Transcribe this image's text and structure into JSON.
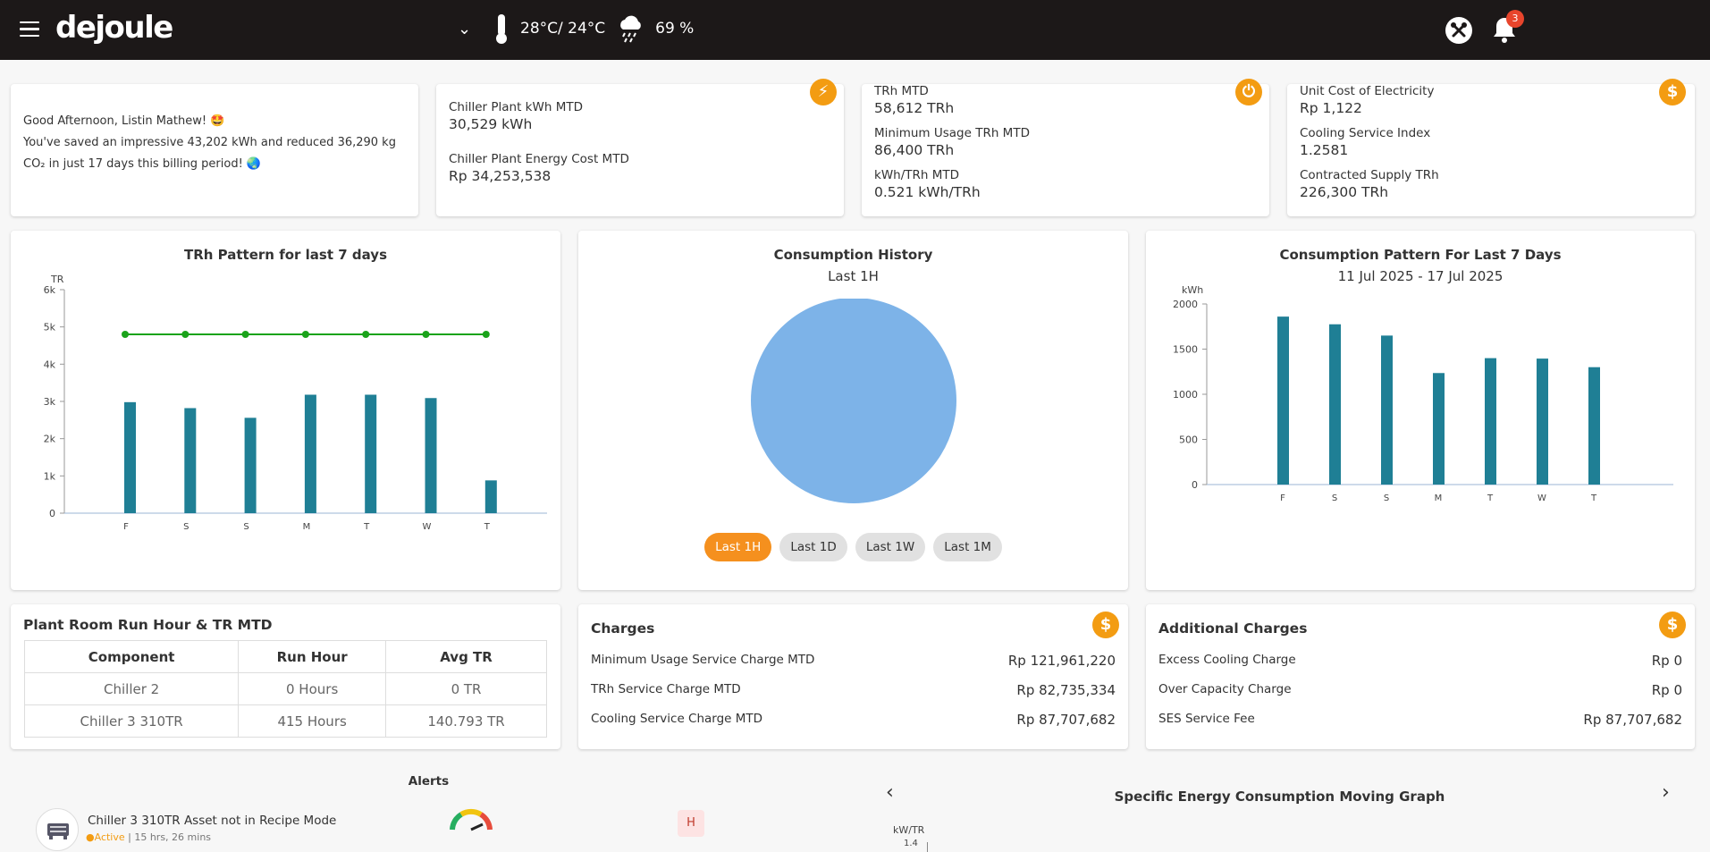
{
  "header": {
    "logo": "dejoule",
    "temperature": "28°C/ 24°C",
    "humidity": "69 %",
    "notification_count": "3"
  },
  "greeting": {
    "line1": "Good Afternoon, Listin Mathew! 🤩",
    "line2": "You've saved an impressive 43,202 kWh and reduced 36,290 kg CO₂ in just 17 days this billing period! 🌏"
  },
  "kpi1": {
    "a_label": "Chiller Plant kWh MTD",
    "a_value": "30,529 kWh",
    "b_label": "Chiller Plant Energy Cost MTD",
    "b_value": "Rp 34,253,538"
  },
  "kpi2": {
    "a_label": "TRh MTD",
    "a_value": "58,612 TRh",
    "b_label": "Minimum Usage TRh MTD",
    "b_value": "86,400 TRh",
    "c_label": "kWh/TRh MTD",
    "c_value": "0.521 kWh/TRh"
  },
  "kpi3": {
    "a_label": "Unit Cost of Electricity",
    "a_value": "Rp 1,122",
    "b_label": "Cooling Service Index",
    "b_value": "1.2581",
    "c_label": "Contracted Supply TRh",
    "c_value": "226,300 TRh"
  },
  "trh_card": {
    "title": "TRh Pattern for last 7 days"
  },
  "consumption_card": {
    "title": "Consumption History",
    "subtitle": "Last 1H",
    "filters": [
      "Last 1H",
      "Last 1D",
      "Last 1W",
      "Last 1M"
    ]
  },
  "pattern_card": {
    "title": "Consumption Pattern For Last 7 Days",
    "subtitle": "11 Jul 2025 - 17 Jul 2025"
  },
  "run_hour": {
    "title": "Plant Room Run Hour & TR MTD",
    "headers": [
      "Component",
      "Run Hour",
      "Avg TR"
    ],
    "rows": [
      [
        "Chiller 2",
        "0 Hours",
        "0 TR"
      ],
      [
        "Chiller 3 310TR",
        "415 Hours",
        "140.793 TR"
      ]
    ]
  },
  "charges": {
    "title": "Charges",
    "rows": [
      {
        "label": "Minimum Usage Service Charge MTD",
        "amount": "Rp 121,961,220"
      },
      {
        "label": "TRh Service Charge MTD",
        "amount": "Rp 82,735,334"
      },
      {
        "label": "Cooling Service Charge MTD",
        "amount": "Rp 87,707,682"
      }
    ]
  },
  "additional_charges": {
    "title": "Additional Charges",
    "rows": [
      {
        "label": "Excess Cooling Charge",
        "amount": "Rp 0"
      },
      {
        "label": "Over Capacity Charge",
        "amount": "Rp 0"
      },
      {
        "label": "SES Service Fee",
        "amount": "Rp 87,707,682"
      }
    ]
  },
  "alerts": {
    "title": "Alerts",
    "item_title": "Chiller 3 310TR Asset not in Recipe Mode",
    "item_status": "Active",
    "item_time": "| 15 hrs, 26 mins",
    "item_priority": "H"
  },
  "sec_graph": {
    "title": "Specific Energy Consumption Moving Graph",
    "ylabel": "kW/TR",
    "first_tick": "1.4"
  },
  "colors": {
    "accent": "#f39c12",
    "bar": "#1f7f95",
    "line": "#1aa31a",
    "pie": "#7db3e8"
  },
  "chart_data": [
    {
      "type": "bar",
      "title": "TRh Pattern for last 7 days",
      "ylabel": "TR",
      "categories": [
        "F",
        "S",
        "S",
        "M",
        "T",
        "W",
        "T"
      ],
      "series": [
        {
          "name": "TRh",
          "type": "bar",
          "values": [
            2980,
            2820,
            2560,
            3180,
            3180,
            3090,
            880
          ]
        },
        {
          "name": "Minimum Usage",
          "type": "line",
          "values": [
            4800,
            4800,
            4800,
            4800,
            4800,
            4800,
            4800
          ]
        }
      ],
      "ylim": [
        0,
        6000
      ],
      "yticks": [
        0,
        1000,
        2000,
        3000,
        4000,
        5000,
        6000
      ],
      "ytick_labels": [
        "0",
        "1k",
        "2k",
        "3k",
        "4k",
        "5k",
        "6k"
      ]
    },
    {
      "type": "pie",
      "title": "Consumption History",
      "subtitle": "Last 1H",
      "values": [
        100
      ]
    },
    {
      "type": "bar",
      "title": "Consumption Pattern For Last 7 Days",
      "subtitle": "11 Jul 2025 - 17 Jul 2025",
      "ylabel": "kWh",
      "categories": [
        "F",
        "S",
        "S",
        "M",
        "T",
        "W",
        "T"
      ],
      "values": [
        1860,
        1775,
        1650,
        1235,
        1400,
        1395,
        1300
      ],
      "ylim": [
        0,
        2000
      ],
      "yticks": [
        0,
        500,
        1000,
        1500,
        2000
      ]
    }
  ]
}
